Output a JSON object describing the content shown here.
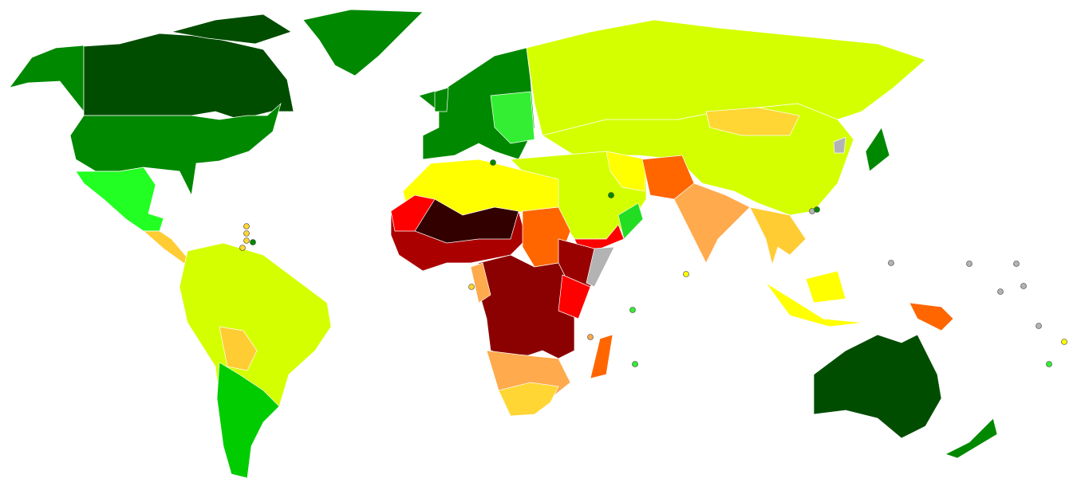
{
  "regions": [
    {
      "color": "#008800"
    },
    {
      "color": "#004d00"
    },
    {
      "color": "#004d00"
    },
    {
      "color": "#008800"
    },
    {
      "color": "#008800"
    },
    {
      "color": "#22ff22"
    },
    {
      "color": "#ffcc33"
    },
    {
      "color": "#d4ff00"
    },
    {
      "color": "#00cc00"
    },
    {
      "color": "#ffcc33"
    },
    {
      "color": "#008800"
    },
    {
      "color": "#008800"
    },
    {
      "color": "#33ee33"
    },
    {
      "color": "#d4ff00"
    },
    {
      "color": "#d4ff00"
    },
    {
      "color": "#ffd633"
    },
    {
      "color": "#d4ff00"
    },
    {
      "color": "#ffff00"
    },
    {
      "color": "#ff0000"
    },
    {
      "color": "#22dd22"
    },
    {
      "color": "#ff6600"
    },
    {
      "color": "#ffaa4d"
    },
    {
      "color": "#ffcc33"
    },
    {
      "color": "#ffff00"
    },
    {
      "color": "#ffff00"
    },
    {
      "color": "#ff6600"
    },
    {
      "color": "#004d00"
    },
    {
      "color": "#008800"
    },
    {
      "color": "#008800"
    },
    {
      "color": "#ffff00"
    },
    {
      "color": "#aa0000"
    },
    {
      "color": "#330000"
    },
    {
      "color": "#ff0000"
    },
    {
      "color": "#ff6600"
    },
    {
      "color": "#990000"
    },
    {
      "color": "#b3b3b3"
    },
    {
      "color": "#8b0000"
    },
    {
      "color": "#ff0000"
    },
    {
      "color": "#ffaa4d"
    },
    {
      "color": "#ffd633"
    },
    {
      "color": "#ff6600"
    },
    {
      "color": "#b3b3b3"
    },
    {
      "color": "#ffaa4d"
    }
  ]
}
